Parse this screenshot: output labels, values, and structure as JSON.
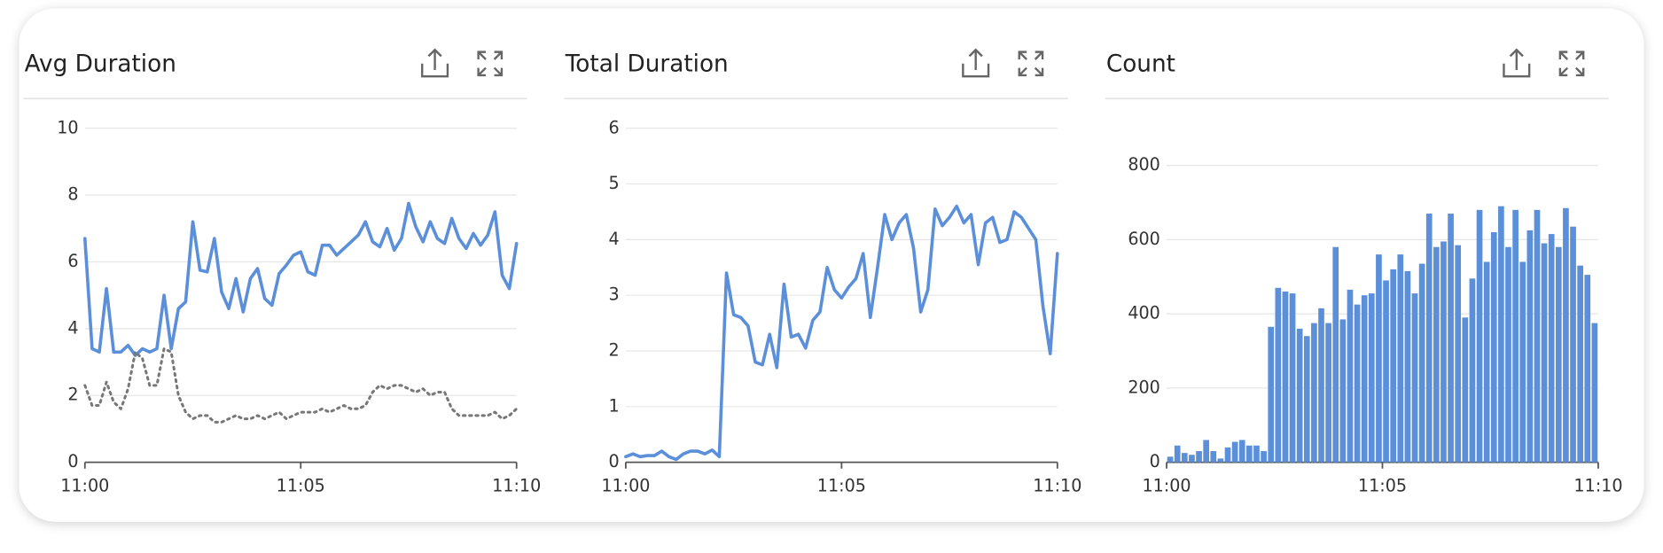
{
  "chart_data": [
    {
      "type": "line",
      "title": "Avg Duration",
      "x": [
        0,
        10,
        20,
        30,
        40,
        50,
        60,
        70,
        80,
        90,
        100,
        110,
        120,
        130,
        140,
        150,
        160,
        170,
        180,
        190,
        200,
        210,
        220,
        230,
        240,
        250,
        260,
        270,
        280,
        290,
        300,
        310,
        320,
        330,
        340,
        350,
        360,
        370,
        380,
        390,
        400,
        410,
        420,
        430,
        440,
        450,
        460,
        470,
        480,
        490,
        500,
        510,
        520,
        530,
        540,
        550,
        560,
        570,
        580,
        590,
        600
      ],
      "xlim": [
        0,
        600
      ],
      "xticks": [
        {
          "value": 0,
          "label": "11:00"
        },
        {
          "value": 300,
          "label": "11:05"
        },
        {
          "value": 600,
          "label": "11:10"
        }
      ],
      "ylim": [
        0,
        10
      ],
      "yticks": [
        0,
        2,
        4,
        6,
        8,
        10
      ],
      "grid": true,
      "series": [
        {
          "color": "#5b8fd9",
          "line_style": "solid",
          "values": [
            6.7,
            3.4,
            3.3,
            5.2,
            3.3,
            3.3,
            3.5,
            3.2,
            3.4,
            3.3,
            3.4,
            5.0,
            3.4,
            4.6,
            4.8,
            7.2,
            5.75,
            5.7,
            6.7,
            5.1,
            4.6,
            5.5,
            4.5,
            5.5,
            5.8,
            4.9,
            4.7,
            5.65,
            5.9,
            6.2,
            6.3,
            5.7,
            5.6,
            6.5,
            6.5,
            6.2,
            6.4,
            6.6,
            6.8,
            7.2,
            6.6,
            6.45,
            7.0,
            6.35,
            6.7,
            7.75,
            7.05,
            6.6,
            7.2,
            6.7,
            6.55,
            7.3,
            6.7,
            6.4,
            6.85,
            6.5,
            6.8,
            7.5,
            5.6,
            5.2,
            6.55
          ]
        },
        {
          "color": "#777777",
          "line_style": "dotted",
          "values": [
            2.3,
            1.7,
            1.7,
            2.4,
            1.8,
            1.6,
            2.2,
            3.3,
            3.1,
            2.3,
            2.3,
            3.4,
            3.3,
            2.0,
            1.5,
            1.3,
            1.4,
            1.4,
            1.2,
            1.2,
            1.3,
            1.4,
            1.3,
            1.3,
            1.4,
            1.3,
            1.4,
            1.5,
            1.3,
            1.4,
            1.5,
            1.5,
            1.5,
            1.6,
            1.5,
            1.6,
            1.7,
            1.6,
            1.6,
            1.7,
            2.1,
            2.3,
            2.2,
            2.3,
            2.3,
            2.2,
            2.1,
            2.2,
            2.0,
            2.1,
            2.1,
            1.6,
            1.4,
            1.4,
            1.4,
            1.4,
            1.4,
            1.5,
            1.3,
            1.4,
            1.6
          ]
        }
      ]
    },
    {
      "type": "line",
      "title": "Total Duration",
      "x": [
        0,
        10,
        20,
        30,
        40,
        50,
        60,
        70,
        80,
        90,
        100,
        110,
        120,
        130,
        140,
        150,
        160,
        170,
        180,
        190,
        200,
        210,
        220,
        230,
        240,
        250,
        260,
        270,
        280,
        290,
        300,
        310,
        320,
        330,
        340,
        350,
        360,
        370,
        380,
        390,
        400,
        410,
        420,
        430,
        440,
        450,
        460,
        470,
        480,
        490,
        500,
        510,
        520,
        530,
        540,
        550,
        560,
        570,
        580,
        590,
        600
      ],
      "xlim": [
        0,
        600
      ],
      "xticks": [
        {
          "value": 0,
          "label": "11:00"
        },
        {
          "value": 300,
          "label": "11:05"
        },
        {
          "value": 600,
          "label": "11:10"
        }
      ],
      "ylim": [
        0,
        6
      ],
      "yticks": [
        0,
        1,
        2,
        3,
        4,
        5,
        6
      ],
      "grid": true,
      "series": [
        {
          "color": "#5b8fd9",
          "line_style": "solid",
          "values": [
            0.1,
            0.15,
            0.1,
            0.12,
            0.12,
            0.2,
            0.1,
            0.05,
            0.15,
            0.2,
            0.2,
            0.15,
            0.22,
            0.1,
            3.4,
            2.65,
            2.6,
            2.45,
            1.8,
            1.75,
            2.3,
            1.7,
            3.2,
            2.25,
            2.3,
            2.05,
            2.55,
            2.7,
            3.5,
            3.1,
            2.95,
            3.15,
            3.3,
            3.75,
            2.6,
            3.5,
            4.45,
            4.0,
            4.3,
            4.45,
            3.85,
            2.7,
            3.1,
            4.55,
            4.25,
            4.4,
            4.6,
            4.3,
            4.45,
            3.55,
            4.3,
            4.4,
            3.95,
            4.0,
            4.5,
            4.4,
            4.2,
            4.0,
            2.8,
            1.95,
            3.75
          ]
        }
      ]
    },
    {
      "type": "bar",
      "title": "Count",
      "x": [
        0,
        10,
        20,
        30,
        40,
        50,
        60,
        70,
        80,
        90,
        100,
        110,
        120,
        130,
        140,
        150,
        160,
        170,
        180,
        190,
        200,
        210,
        220,
        230,
        240,
        250,
        260,
        270,
        280,
        290,
        300,
        310,
        320,
        330,
        340,
        350,
        360,
        370,
        380,
        390,
        400,
        410,
        420,
        430,
        440,
        450,
        460,
        470,
        480,
        490,
        500,
        510,
        520,
        530,
        540,
        550,
        560,
        570,
        580,
        590
      ],
      "xlim": [
        0,
        600
      ],
      "xticks": [
        {
          "value": 0,
          "label": "11:00"
        },
        {
          "value": 300,
          "label": "11:05"
        },
        {
          "value": 600,
          "label": "11:10"
        }
      ],
      "ylim": [
        0,
        900
      ],
      "yticks": [
        0,
        200,
        400,
        600,
        800
      ],
      "grid": true,
      "color": "#5b8fd9",
      "values": [
        15,
        45,
        25,
        20,
        30,
        60,
        30,
        10,
        40,
        55,
        60,
        45,
        45,
        30,
        365,
        470,
        460,
        455,
        360,
        340,
        375,
        415,
        375,
        580,
        385,
        465,
        425,
        450,
        455,
        560,
        490,
        520,
        560,
        515,
        455,
        535,
        670,
        580,
        595,
        670,
        585,
        390,
        495,
        680,
        540,
        620,
        690,
        580,
        680,
        540,
        625,
        680,
        590,
        615,
        580,
        685,
        635,
        530,
        505,
        375
      ]
    }
  ]
}
